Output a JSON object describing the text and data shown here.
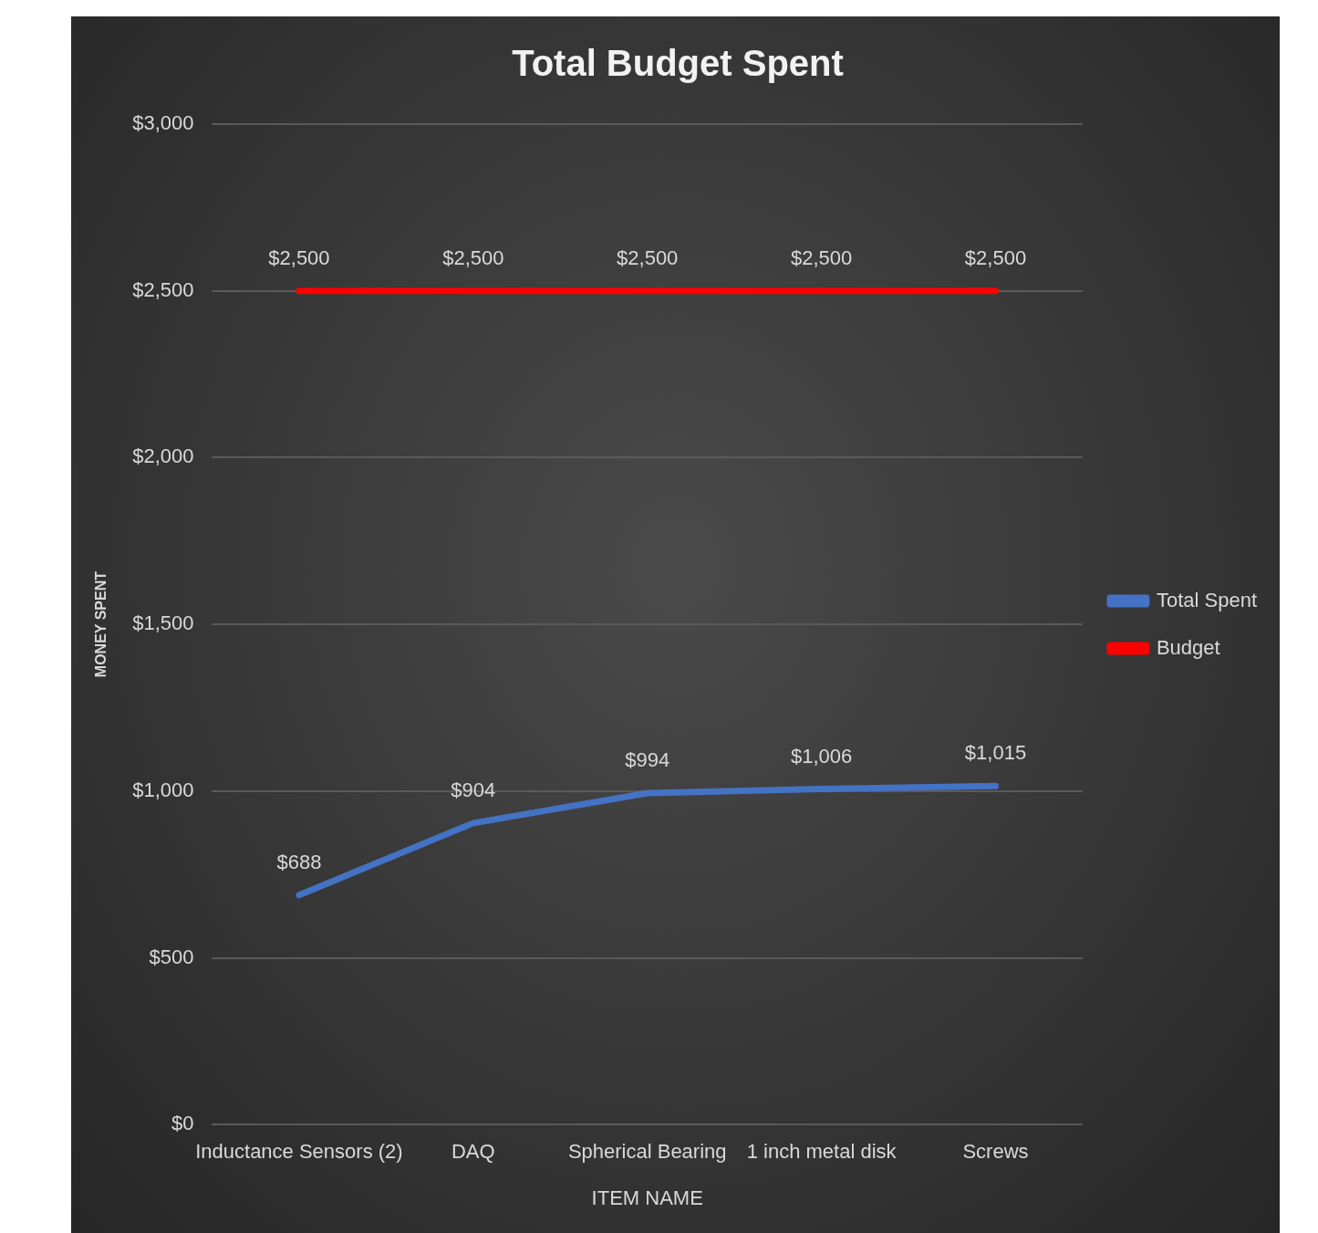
{
  "chart_data": {
    "type": "line",
    "title": "Total Budget Spent",
    "xlabel": "ITEM NAME",
    "ylabel": "MONEY SPENT",
    "categories": [
      "Inductance Sensors (2)",
      "DAQ",
      "Spherical Bearing",
      "1 inch metal disk",
      "Screws"
    ],
    "series": [
      {
        "name": "Total Spent",
        "color": "#4472c4",
        "values": [
          688,
          904,
          994,
          1006,
          1015
        ],
        "value_labels": [
          "$688",
          "$904",
          "$994",
          "$1,006",
          "$1,015"
        ]
      },
      {
        "name": "Budget",
        "color": "#ff0000",
        "values": [
          2500,
          2500,
          2500,
          2500,
          2500
        ],
        "value_labels": [
          "$2,500",
          "$2,500",
          "$2,500",
          "$2,500",
          "$2,500"
        ]
      }
    ],
    "ylim": [
      0,
      3000
    ],
    "yticks": [
      {
        "value": 0,
        "label": "$0"
      },
      {
        "value": 500,
        "label": "$500"
      },
      {
        "value": 1000,
        "label": "$1,000"
      },
      {
        "value": 1500,
        "label": "$1,500"
      },
      {
        "value": 2000,
        "label": "$2,000"
      },
      {
        "value": 2500,
        "label": "$2,500"
      },
      {
        "value": 3000,
        "label": "$3,000"
      }
    ],
    "grid": "y",
    "legend": "right",
    "marker": "none",
    "line_style": "solid"
  }
}
